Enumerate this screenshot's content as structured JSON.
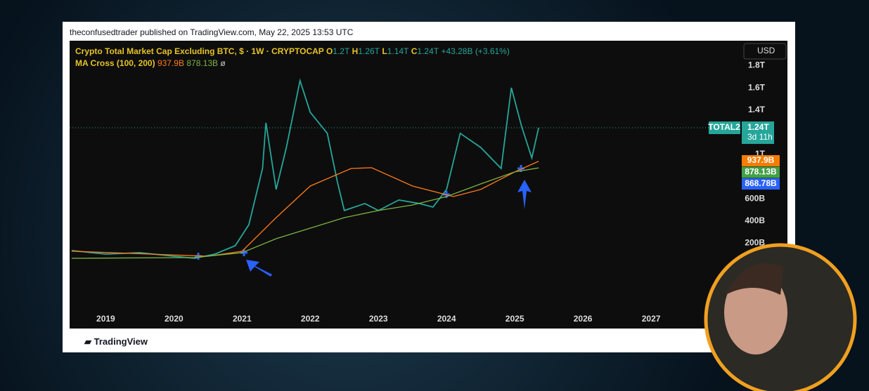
{
  "header": "theconfusedtrader published on TradingView.com, May 22, 2025 13:53 UTC",
  "legend": {
    "symbol": "Crypto Total Market Cap Excluding BTC, $ · 1W · CRYPTOCAP",
    "o_key": "O",
    "o": "1.2T",
    "h_key": "H",
    "h": "1.26T",
    "l_key": "L",
    "l": "1.14T",
    "c_key": "C",
    "c": "1.24T",
    "change": "+43.28B (+3.61%)",
    "ma": "MA Cross (100, 200)",
    "ma_fast": "937.9B",
    "ma_slow": "878.13B",
    "ma_extra": "ø"
  },
  "currency": "USD",
  "price_tag": {
    "name": "TOTAL2",
    "price": "1.24T",
    "countdown": "3d 11h"
  },
  "level_tags": [
    {
      "label": "937.9B",
      "color": "#f57c00"
    },
    {
      "label": "878.13B",
      "color": "#43a047"
    },
    {
      "label": "868.78B",
      "color": "#2962ff"
    }
  ],
  "footer": "TradingView",
  "chart_data": {
    "type": "line",
    "xlim": [
      2018.47,
      2029.0
    ],
    "xticks": [
      2019,
      2020,
      2021,
      2022,
      2023,
      2024,
      2025,
      2026,
      2027
    ],
    "ylim": [
      -570,
      2025
    ],
    "yticks": [
      {
        "value": 200,
        "label": "200B"
      },
      {
        "value": 400,
        "label": "400B"
      },
      {
        "value": 600,
        "label": "600B"
      },
      {
        "value": 1000,
        "label": "1T"
      },
      {
        "value": 1400,
        "label": "1.4T"
      },
      {
        "value": 1600,
        "label": "1.6T"
      },
      {
        "value": 1800,
        "label": "1.8T"
      }
    ],
    "series": [
      {
        "name": "TOTAL2",
        "color": "#26a69a",
        "x": [
          2018.5,
          2019.0,
          2019.5,
          2020.0,
          2020.3,
          2020.6,
          2020.9,
          2021.1,
          2021.3,
          2021.35,
          2021.5,
          2021.65,
          2021.85,
          2022.0,
          2022.25,
          2022.4,
          2022.5,
          2022.8,
          2023.0,
          2023.3,
          2023.6,
          2023.8,
          2024.0,
          2024.2,
          2024.5,
          2024.8,
          2024.95,
          2025.1,
          2025.25,
          2025.35
        ],
        "values": [
          133,
          101,
          114,
          82,
          63,
          101,
          177,
          367,
          873,
          1285,
          684,
          1063,
          1665,
          1380,
          1190,
          747,
          494,
          557,
          494,
          589,
          557,
          525,
          684,
          1190,
          1063,
          873,
          1601,
          1253,
          968,
          1240
        ]
      },
      {
        "name": "MA 100",
        "color": "#ff7a1a",
        "x": [
          2018.5,
          2020.5,
          2021.0,
          2021.5,
          2022.0,
          2022.6,
          2022.9,
          2023.5,
          2024.1,
          2024.5,
          2025.0,
          2025.35
        ],
        "values": [
          127,
          82,
          127,
          430,
          715,
          873,
          880,
          715,
          620,
          684,
          842,
          937.9
        ]
      },
      {
        "name": "MA 200",
        "color": "#7cb342",
        "x": [
          2018.5,
          2020.3,
          2021.0,
          2021.5,
          2022.0,
          2022.5,
          2023.0,
          2023.5,
          2024.0,
          2024.5,
          2025.0,
          2025.35
        ],
        "values": [
          63,
          70,
          114,
          240,
          335,
          430,
          494,
          544,
          620,
          734,
          842,
          878.13
        ]
      }
    ]
  }
}
